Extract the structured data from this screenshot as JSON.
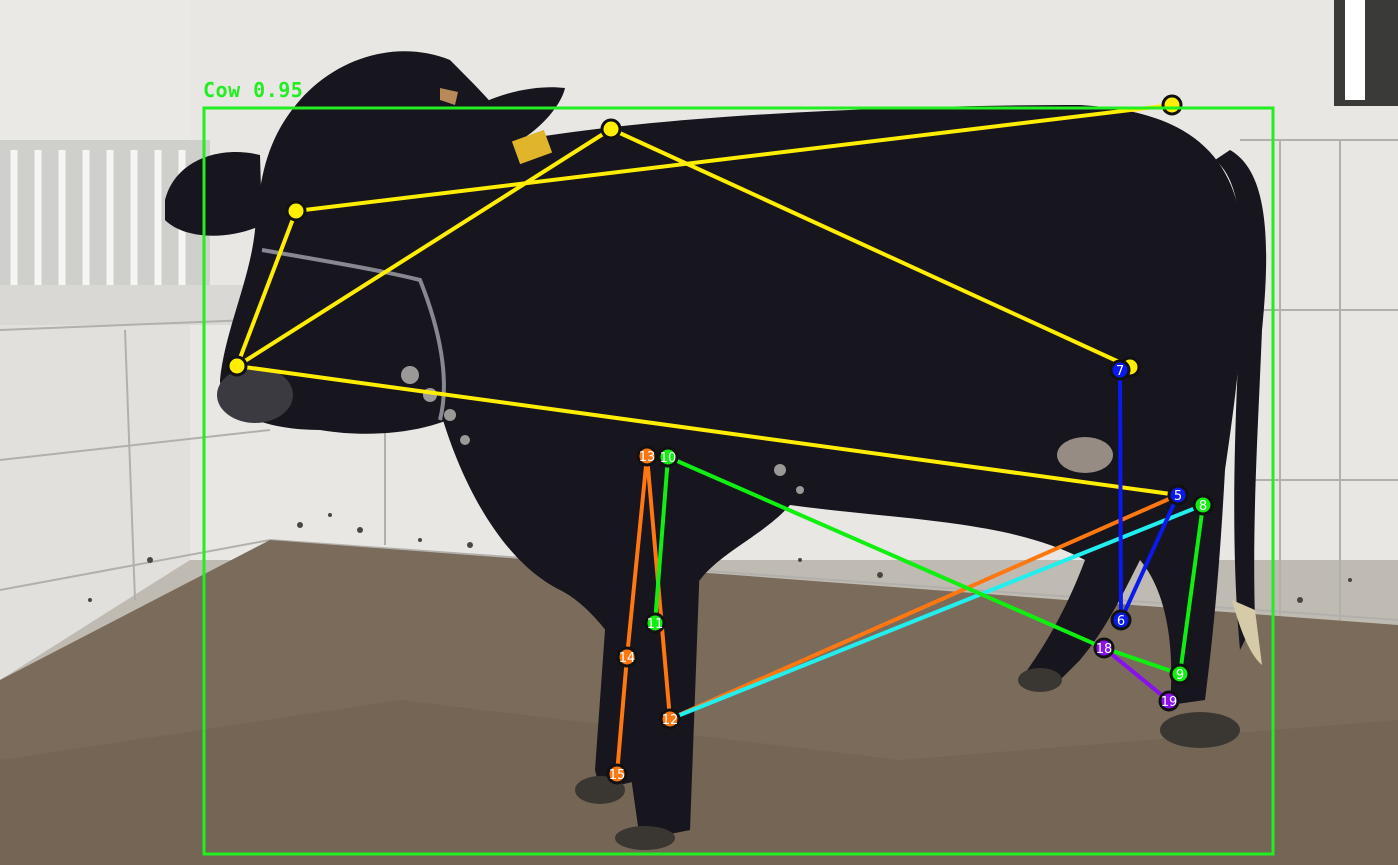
{
  "detection": {
    "label": "Cow 0.95",
    "class_name": "Cow",
    "confidence": 0.95,
    "box_color": "#22ee22"
  },
  "keypoint_labels": [
    "7",
    "5",
    "8",
    "6",
    "9",
    "18",
    "19",
    "13",
    "10",
    "11",
    "14",
    "12",
    "15"
  ],
  "colors": {
    "wall": "#e8e6e2",
    "tile_line": "#a9a7a3",
    "floor": "#7a6b5c",
    "cow": "#16141c",
    "yellow_skeleton": "#ffee00",
    "orange_skeleton": "#ff7711",
    "green_skeleton": "#11ee11",
    "blue_skeleton": "#0a1aee",
    "cyan_skeleton": "#22eeee",
    "purple_skeleton": "#8811ee"
  },
  "icons": [
    "keypoint-marker-icon"
  ]
}
